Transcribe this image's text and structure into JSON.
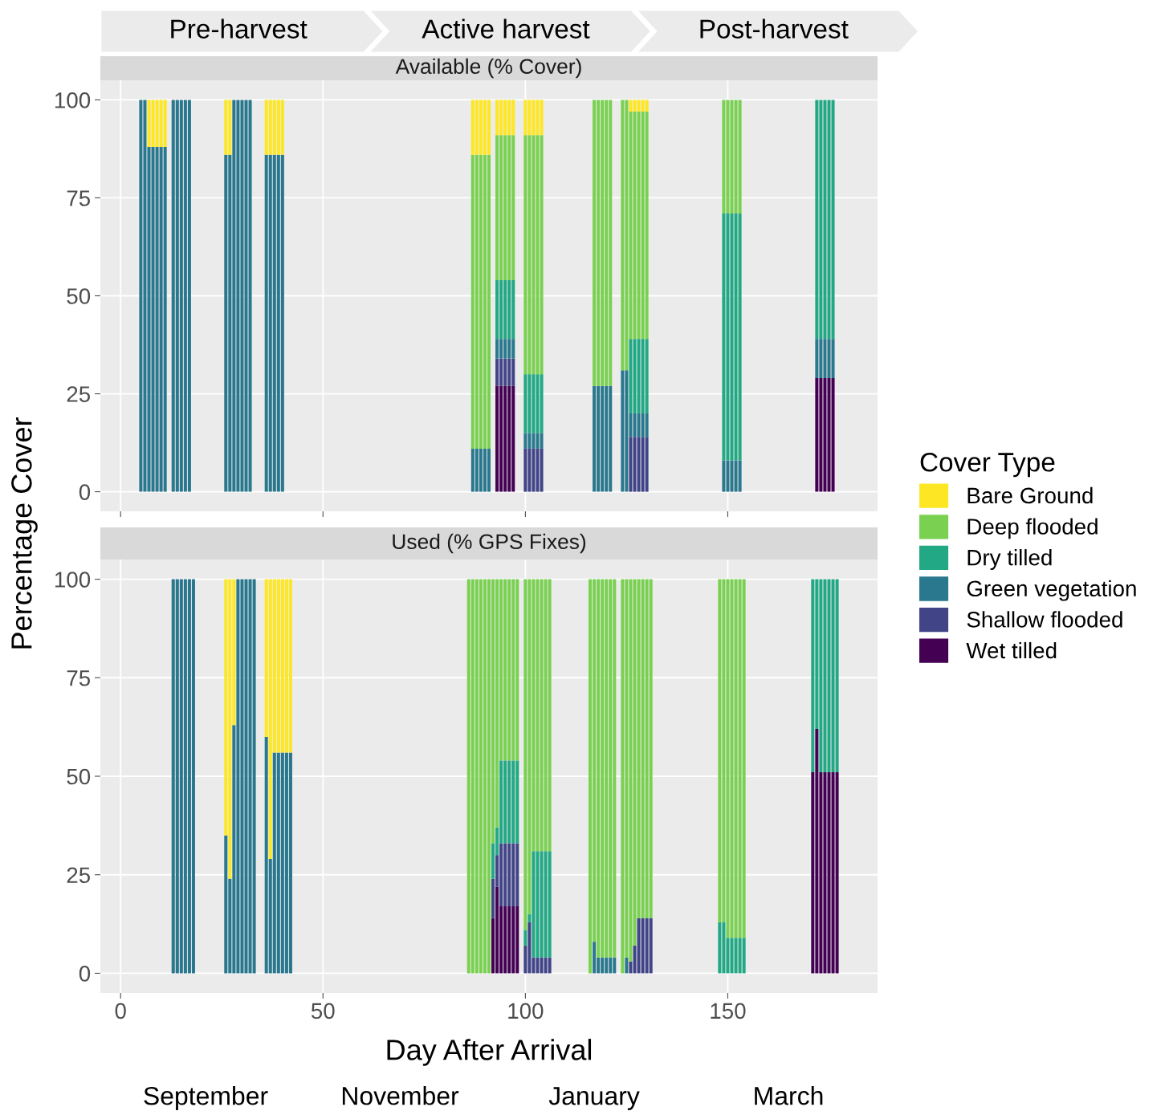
{
  "chart_data": [
    {
      "type": "bar",
      "stacked": true,
      "title": "Available (% Cover)",
      "ylabel": "Percentage Cover",
      "legend_title": "Cover Type",
      "legend": "right",
      "grid": true,
      "tick_labels": "y",
      "xlim": [
        -5,
        187
      ],
      "xticks": [
        0,
        50,
        100,
        150
      ],
      "ylim": [
        -5,
        105
      ],
      "yticks": [
        0,
        25,
        50,
        75,
        100
      ],
      "annotations": [
        "Pre-harvest",
        "Active harvest",
        "Post-harvest"
      ],
      "x": [
        5,
        6,
        7,
        8,
        9,
        10,
        11,
        13,
        14,
        15,
        16,
        17,
        26,
        27,
        28,
        29,
        30,
        31,
        32,
        36,
        37,
        38,
        39,
        40,
        87,
        88,
        89,
        90,
        91,
        93,
        94,
        95,
        96,
        97,
        100,
        101,
        102,
        103,
        104,
        117,
        118,
        119,
        120,
        121,
        124,
        125,
        126,
        127,
        128,
        129,
        130,
        149,
        150,
        151,
        152,
        153,
        172,
        173,
        174,
        175,
        176
      ],
      "series": [
        {
          "name": "Wet tilled",
          "color": "#440154",
          "values": [
            null,
            null,
            null,
            null,
            null,
            null,
            null,
            null,
            null,
            null,
            null,
            null,
            null,
            null,
            null,
            null,
            null,
            null,
            null,
            null,
            null,
            null,
            null,
            null,
            null,
            null,
            null,
            null,
            null,
            27,
            27,
            27,
            27,
            27,
            null,
            null,
            null,
            null,
            null,
            null,
            null,
            null,
            null,
            null,
            null,
            null,
            null,
            null,
            null,
            null,
            null,
            null,
            null,
            null,
            null,
            null,
            29,
            29,
            29,
            29,
            29
          ]
        },
        {
          "name": "Shallow flooded",
          "color": "#414487",
          "values": [
            null,
            null,
            null,
            null,
            null,
            null,
            null,
            null,
            null,
            null,
            null,
            null,
            null,
            null,
            null,
            null,
            null,
            null,
            null,
            null,
            null,
            null,
            null,
            null,
            null,
            null,
            null,
            null,
            null,
            7,
            7,
            7,
            7,
            7,
            11,
            11,
            11,
            11,
            11,
            null,
            null,
            null,
            null,
            null,
            null,
            null,
            14,
            14,
            14,
            14,
            14,
            null,
            null,
            null,
            null,
            null,
            null,
            null,
            null,
            null,
            null
          ]
        },
        {
          "name": "Green vegetation",
          "color": "#2a788e",
          "values": [
            100,
            100,
            88,
            88,
            88,
            88,
            88,
            100,
            100,
            100,
            100,
            100,
            86,
            86,
            100,
            100,
            100,
            100,
            100,
            86,
            86,
            86,
            86,
            86,
            11,
            11,
            11,
            11,
            11,
            5,
            5,
            5,
            5,
            5,
            4,
            4,
            4,
            4,
            4,
            27,
            27,
            27,
            27,
            27,
            31,
            31,
            6,
            6,
            6,
            6,
            6,
            8,
            8,
            8,
            8,
            8,
            10,
            10,
            10,
            10,
            10
          ]
        },
        {
          "name": "Dry tilled",
          "color": "#22a884",
          "values": [
            null,
            null,
            null,
            null,
            null,
            null,
            null,
            null,
            null,
            null,
            null,
            null,
            null,
            null,
            null,
            null,
            null,
            null,
            null,
            null,
            null,
            null,
            null,
            null,
            null,
            null,
            null,
            null,
            null,
            15,
            15,
            15,
            15,
            15,
            15,
            15,
            15,
            15,
            15,
            null,
            null,
            null,
            null,
            null,
            null,
            null,
            19,
            19,
            19,
            19,
            19,
            63,
            63,
            63,
            63,
            63,
            61,
            61,
            61,
            61,
            61
          ]
        },
        {
          "name": "Deep flooded",
          "color": "#7ad151",
          "values": [
            null,
            null,
            null,
            null,
            null,
            null,
            null,
            null,
            null,
            null,
            null,
            null,
            null,
            null,
            null,
            null,
            null,
            null,
            null,
            null,
            null,
            null,
            null,
            null,
            75,
            75,
            75,
            75,
            75,
            37,
            37,
            37,
            37,
            37,
            61,
            61,
            61,
            61,
            61,
            73,
            73,
            73,
            73,
            73,
            69,
            69,
            58,
            58,
            58,
            58,
            58,
            29,
            29,
            29,
            29,
            29,
            null,
            null,
            null,
            null,
            null
          ]
        },
        {
          "name": "Bare Ground",
          "color": "#fde725",
          "values": [
            null,
            null,
            12,
            12,
            12,
            12,
            12,
            null,
            null,
            null,
            null,
            null,
            14,
            14,
            null,
            null,
            null,
            null,
            null,
            14,
            14,
            14,
            14,
            14,
            14,
            14,
            14,
            14,
            14,
            9,
            9,
            9,
            9,
            9,
            9,
            9,
            9,
            9,
            9,
            null,
            null,
            null,
            null,
            null,
            null,
            null,
            3,
            3,
            3,
            3,
            3,
            null,
            null,
            null,
            null,
            null,
            null,
            null,
            null,
            null,
            null
          ]
        }
      ]
    },
    {
      "type": "bar",
      "stacked": true,
      "title": "Used (% GPS Fixes)",
      "xlabel": "Day After Arrival",
      "grid": true,
      "xlim": [
        -5,
        187
      ],
      "xticks": [
        0,
        50,
        100,
        150
      ],
      "ylim": [
        -5,
        105
      ],
      "yticks": [
        0,
        25,
        50,
        75,
        100
      ],
      "annotations": [
        "September",
        "November",
        "January",
        "March"
      ],
      "x": [
        13,
        14,
        15,
        16,
        17,
        18,
        26,
        27,
        28,
        29,
        30,
        31,
        32,
        33,
        36,
        37,
        38,
        39,
        40,
        41,
        42,
        86,
        87,
        88,
        89,
        90,
        91,
        92,
        93,
        94,
        95,
        96,
        97,
        98,
        100,
        101,
        102,
        103,
        104,
        105,
        106,
        116,
        117,
        118,
        119,
        120,
        121,
        122,
        124,
        125,
        126,
        127,
        128,
        129,
        130,
        131,
        148,
        149,
        150,
        151,
        152,
        153,
        154,
        171,
        172,
        173,
        174,
        175,
        176,
        177
      ],
      "series": [
        {
          "color": "#440154",
          "values": [
            null,
            null,
            null,
            null,
            null,
            null,
            null,
            null,
            null,
            null,
            null,
            null,
            null,
            null,
            null,
            null,
            null,
            null,
            null,
            null,
            null,
            null,
            null,
            null,
            null,
            null,
            null,
            14,
            22,
            17,
            17,
            17,
            17,
            17,
            null,
            null,
            null,
            null,
            null,
            null,
            null,
            null,
            null,
            null,
            null,
            null,
            null,
            null,
            null,
            null,
            null,
            null,
            null,
            null,
            null,
            null,
            null,
            null,
            null,
            null,
            null,
            null,
            null,
            51,
            62,
            51,
            51,
            51,
            51,
            51
          ]
        },
        {
          "color": "#414487",
          "values": [
            null,
            null,
            null,
            null,
            null,
            null,
            null,
            null,
            null,
            null,
            null,
            null,
            null,
            null,
            null,
            null,
            null,
            null,
            null,
            null,
            null,
            null,
            null,
            null,
            null,
            null,
            null,
            10,
            8,
            16,
            16,
            16,
            16,
            16,
            7,
            13,
            4,
            4,
            4,
            4,
            4,
            null,
            null,
            null,
            null,
            null,
            null,
            null,
            null,
            null,
            3,
            7,
            14,
            14,
            14,
            14,
            null,
            null,
            null,
            null,
            null,
            null,
            null,
            null,
            null,
            null,
            null,
            null,
            null,
            null
          ]
        },
        {
          "color": "#2a788e",
          "values": [
            100,
            100,
            100,
            100,
            100,
            100,
            35,
            24,
            63,
            100,
            100,
            100,
            100,
            100,
            60,
            29,
            56,
            56,
            56,
            56,
            56,
            null,
            null,
            null,
            null,
            null,
            null,
            null,
            null,
            null,
            null,
            null,
            null,
            null,
            null,
            null,
            null,
            null,
            null,
            null,
            null,
            null,
            8,
            4,
            4,
            4,
            4,
            4,
            null,
            4,
            null,
            null,
            null,
            null,
            null,
            null,
            null,
            null,
            null,
            null,
            null,
            null,
            null,
            null,
            null,
            null,
            null,
            null,
            null,
            null
          ]
        },
        {
          "color": "#22a884",
          "values": [
            null,
            null,
            null,
            null,
            null,
            null,
            null,
            null,
            null,
            null,
            null,
            null,
            null,
            null,
            null,
            null,
            null,
            null,
            null,
            null,
            null,
            null,
            null,
            null,
            null,
            null,
            null,
            9,
            7,
            21,
            21,
            21,
            21,
            21,
            4,
            2,
            27,
            27,
            27,
            27,
            27,
            null,
            null,
            null,
            null,
            null,
            null,
            null,
            null,
            null,
            null,
            null,
            null,
            null,
            null,
            null,
            13,
            13,
            9,
            9,
            9,
            9,
            9,
            49,
            38,
            49,
            49,
            49,
            49,
            49
          ]
        },
        {
          "color": "#7ad151",
          "values": [
            null,
            null,
            null,
            null,
            null,
            null,
            null,
            null,
            null,
            null,
            null,
            null,
            null,
            null,
            null,
            null,
            null,
            null,
            null,
            null,
            null,
            100,
            100,
            100,
            100,
            100,
            100,
            67,
            63,
            46,
            46,
            46,
            46,
            46,
            89,
            85,
            69,
            69,
            69,
            69,
            69,
            100,
            92,
            96,
            96,
            96,
            96,
            96,
            100,
            96,
            97,
            93,
            86,
            86,
            86,
            86,
            87,
            87,
            91,
            91,
            91,
            91,
            91,
            null,
            null,
            null,
            null,
            null,
            null,
            null
          ]
        },
        {
          "color": "#fde725",
          "values": [
            null,
            null,
            null,
            null,
            null,
            null,
            65,
            76,
            37,
            null,
            null,
            null,
            null,
            null,
            40,
            71,
            44,
            44,
            44,
            44,
            44,
            null,
            null,
            null,
            null,
            null,
            null,
            null,
            null,
            null,
            null,
            null,
            null,
            null,
            null,
            null,
            null,
            null,
            null,
            null,
            null,
            null,
            null,
            null,
            null,
            null,
            null,
            null,
            null,
            null,
            null,
            null,
            null,
            null,
            null,
            null,
            null,
            null,
            null,
            null,
            null,
            null,
            null,
            null,
            null,
            null,
            null,
            null,
            null,
            null
          ]
        }
      ]
    }
  ]
}
